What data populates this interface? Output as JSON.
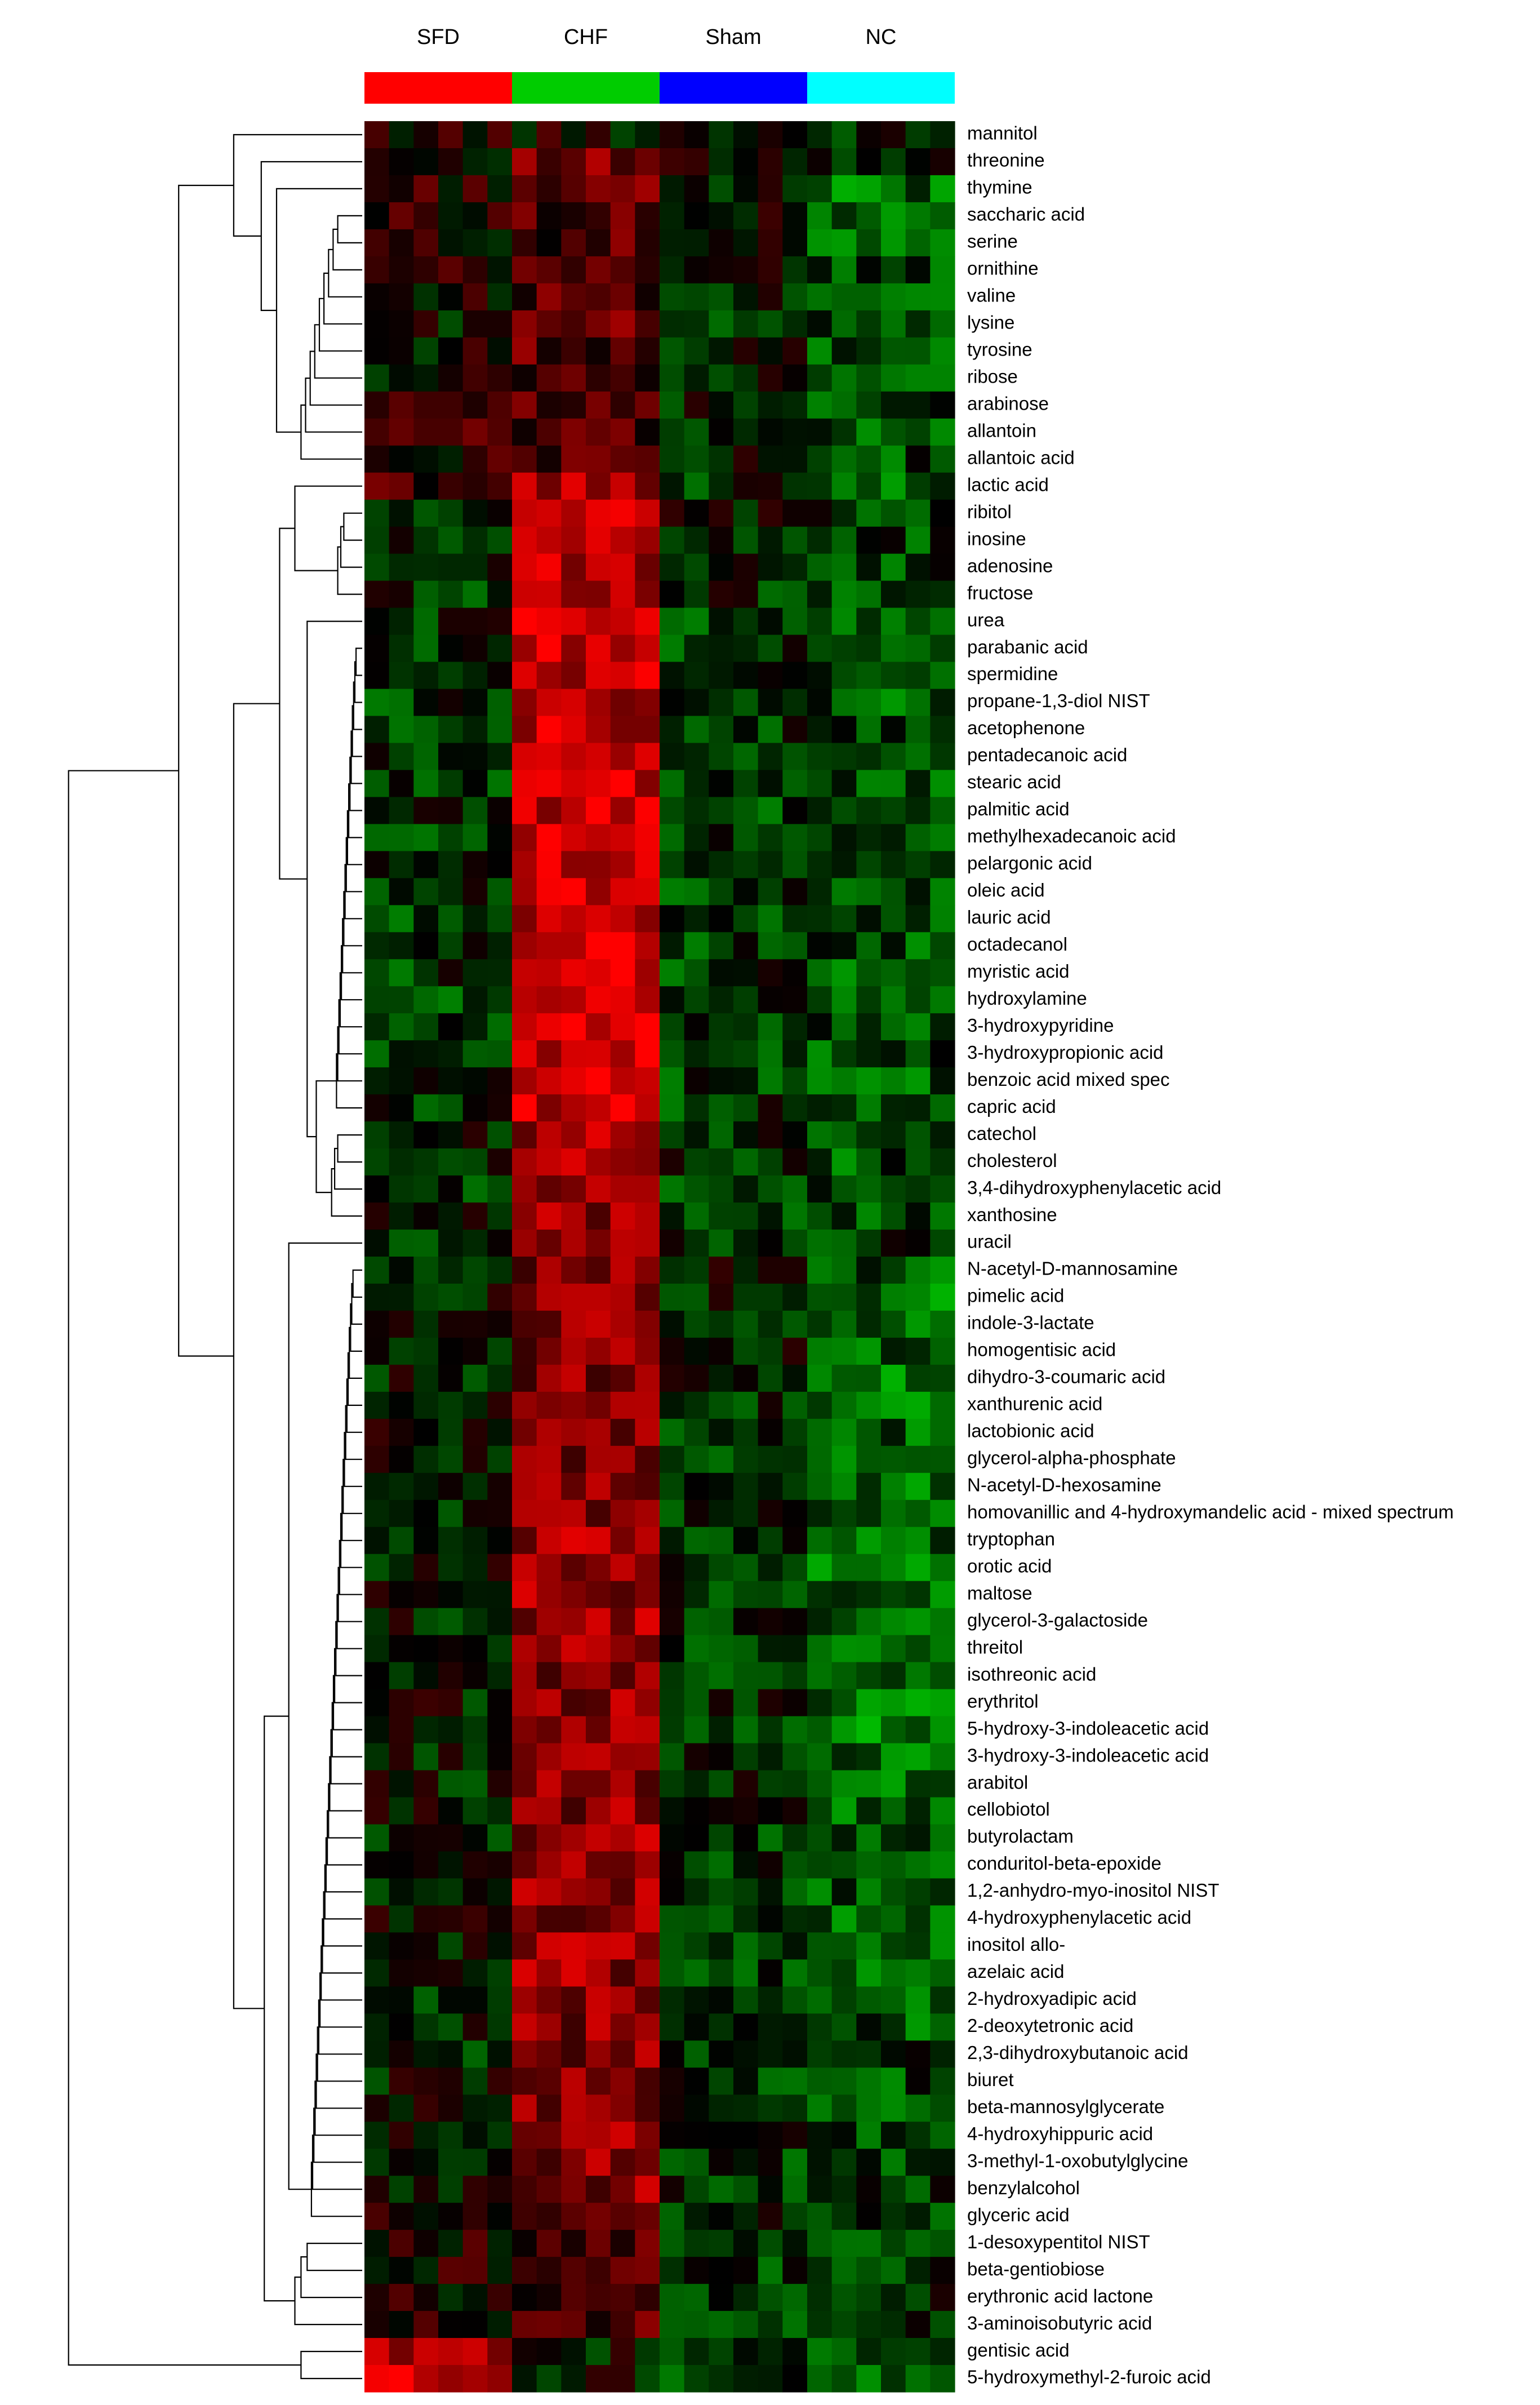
{
  "chart_data": {
    "type": "heatmap",
    "title": "",
    "color_scale": {
      "low": "#00ff00",
      "mid": "#000000",
      "high": "#ff0000",
      "range": [
        -3,
        3
      ]
    },
    "groups": [
      {
        "name": "SFD",
        "color": "#ff0000",
        "n_samples": 6
      },
      {
        "name": "CHF",
        "color": "#00cc00",
        "n_samples": 6
      },
      {
        "name": "Sham",
        "color": "#0000ff",
        "n_samples": 6
      },
      {
        "name": "NC",
        "color": "#00ffff",
        "n_samples": 6
      }
    ],
    "rows": [
      "mannitol",
      "threonine",
      "thymine",
      "saccharic acid",
      "serine",
      "ornithine",
      "valine",
      "lysine",
      "tyrosine",
      "ribose",
      "arabinose",
      "allantoin",
      "allantoic acid",
      "lactic acid",
      "ribitol",
      "inosine",
      "adenosine",
      "fructose",
      "urea",
      "parabanic acid",
      "spermidine",
      "propane-1,3-diol NIST",
      "acetophenone",
      "pentadecanoic acid",
      "stearic acid",
      "palmitic acid",
      "methylhexadecanoic acid",
      "pelargonic acid",
      "oleic acid",
      "lauric acid",
      "octadecanol",
      "myristic acid",
      "hydroxylamine",
      "3-hydroxypyridine",
      "3-hydroxypropionic acid",
      "benzoic acid mixed spec",
      "capric acid",
      "catechol",
      "cholesterol",
      "3,4-dihydroxyphenylacetic acid",
      "xanthosine",
      "uracil",
      "N-acetyl-D-mannosamine",
      "pimelic acid",
      "indole-3-lactate",
      "homogentisic acid",
      "dihydro-3-coumaric acid",
      "xanthurenic acid",
      "lactobionic acid",
      "glycerol-alpha-phosphate",
      "N-acetyl-D-hexosamine",
      "homovanillic and 4-hydroxymandelic acid - mixed spectrum",
      "tryptophan",
      "orotic acid",
      "maltose",
      "glycerol-3-galactoside",
      "threitol",
      "isothreonic acid",
      "erythritol",
      "5-hydroxy-3-indoleacetic acid",
      "3-hydroxy-3-indoleacetic acid",
      "arabitol",
      "cellobiotol",
      "butyrolactam",
      "conduritol-beta-epoxide",
      "1,2-anhydro-myo-inositol NIST",
      "4-hydroxyphenylacetic acid",
      "inositol allo-",
      "azelaic acid",
      "2-hydroxyadipic acid",
      "2-deoxytetronic acid",
      "2,3-dihydroxybutanoic acid",
      "biuret",
      "beta-mannosylglycerate",
      "4-hydroxyhippuric acid",
      "3-methyl-1-oxobutylglycine",
      "benzylalcohol",
      "glyceric acid",
      "1-desoxypentitol NIST",
      "beta-gentiobiose",
      "erythronic acid lactone",
      "3-aminoisobutyric acid",
      "gentisic acid",
      "5-hydroxymethyl-2-furoic acid"
    ],
    "group_mean_z": [
      [
        0.4,
        0.1,
        0.1,
        -0.4
      ],
      [
        0.3,
        1.2,
        -0.1,
        -0.5
      ],
      [
        0.5,
        1.0,
        -0.3,
        -1.2
      ],
      [
        0.4,
        1.0,
        -0.2,
        -1.0
      ],
      [
        0.2,
        0.8,
        -0.3,
        -1.0
      ],
      [
        0.2,
        0.9,
        0.0,
        -0.8
      ],
      [
        0.1,
        1.0,
        -0.2,
        -1.0
      ],
      [
        0.0,
        1.0,
        -0.4,
        -0.8
      ],
      [
        0.0,
        1.0,
        -0.3,
        -0.9
      ],
      [
        0.1,
        0.8,
        -0.3,
        -0.7
      ],
      [
        0.3,
        0.8,
        -0.3,
        -0.9
      ],
      [
        0.6,
        0.9,
        -0.2,
        -0.9
      ],
      [
        0.5,
        0.9,
        -0.2,
        -0.8
      ],
      [
        0.8,
        1.8,
        -0.5,
        -1.0
      ],
      [
        -0.5,
        2.2,
        -0.3,
        -0.7
      ],
      [
        -0.6,
        2.2,
        -0.3,
        -0.7
      ],
      [
        -0.4,
        2.0,
        -0.3,
        -0.7
      ],
      [
        -0.5,
        2.0,
        -0.4,
        -0.8
      ],
      [
        -0.4,
        2.2,
        -0.6,
        -1.0
      ],
      [
        -0.6,
        2.3,
        -0.6,
        -0.9
      ],
      [
        -0.6,
        2.3,
        -0.5,
        -0.9
      ],
      [
        -0.6,
        2.2,
        -0.6,
        -0.9
      ],
      [
        -0.6,
        2.2,
        -0.6,
        -0.9
      ],
      [
        -0.6,
        2.3,
        -0.6,
        -0.9
      ],
      [
        -0.6,
        2.3,
        -0.6,
        -0.9
      ],
      [
        -0.6,
        2.3,
        -0.6,
        -0.9
      ],
      [
        -0.6,
        2.3,
        -0.6,
        -0.9
      ],
      [
        -0.6,
        2.3,
        -0.6,
        -0.9
      ],
      [
        -0.6,
        2.3,
        -0.6,
        -0.9
      ],
      [
        -0.6,
        2.3,
        -0.6,
        -0.9
      ],
      [
        -0.6,
        2.3,
        -0.6,
        -0.9
      ],
      [
        -0.6,
        2.3,
        -0.6,
        -0.9
      ],
      [
        -0.6,
        2.3,
        -0.6,
        -0.9
      ],
      [
        -0.6,
        2.3,
        -0.6,
        -0.9
      ],
      [
        -0.6,
        2.3,
        -0.6,
        -0.9
      ],
      [
        -0.6,
        2.3,
        -0.6,
        -0.9
      ],
      [
        -0.6,
        2.3,
        -0.6,
        -0.9
      ],
      [
        -0.3,
        1.8,
        -0.4,
        -0.9
      ],
      [
        -0.4,
        2.0,
        -0.5,
        -0.9
      ],
      [
        -0.5,
        2.0,
        -0.5,
        -0.9
      ],
      [
        -0.2,
        1.6,
        -0.5,
        -0.9
      ],
      [
        -0.4,
        1.5,
        -0.6,
        -0.5
      ],
      [
        -0.1,
        1.4,
        -0.3,
        -0.9
      ],
      [
        -0.3,
        1.5,
        -0.2,
        -1.2
      ],
      [
        -0.4,
        1.5,
        -0.3,
        -1.2
      ],
      [
        -0.3,
        1.5,
        -0.3,
        -1.1
      ],
      [
        -0.3,
        1.5,
        -0.3,
        -1.2
      ],
      [
        -0.3,
        1.6,
        -0.4,
        -1.1
      ],
      [
        -0.2,
        1.5,
        -0.4,
        -1.1
      ],
      [
        -0.2,
        1.5,
        -0.5,
        -1.0
      ],
      [
        -0.3,
        1.5,
        -0.6,
        -1.1
      ],
      [
        -0.2,
        1.6,
        -0.5,
        -1.2
      ],
      [
        -0.2,
        1.8,
        -0.5,
        -1.2
      ],
      [
        -0.2,
        1.8,
        -0.5,
        -1.2
      ],
      [
        -0.2,
        1.8,
        -0.5,
        -1.2
      ],
      [
        -0.2,
        1.8,
        -0.5,
        -1.2
      ],
      [
        -0.2,
        1.6,
        -0.5,
        -1.3
      ],
      [
        -0.2,
        1.6,
        -0.5,
        -1.3
      ],
      [
        -0.2,
        1.6,
        -0.5,
        -1.3
      ],
      [
        -0.2,
        1.6,
        -0.5,
        -1.3
      ],
      [
        -0.2,
        1.6,
        -0.5,
        -1.3
      ],
      [
        -0.2,
        1.6,
        -0.5,
        -1.3
      ],
      [
        -0.2,
        1.6,
        -0.5,
        -1.2
      ],
      [
        -0.4,
        1.7,
        -0.5,
        -1.0
      ],
      [
        -0.3,
        1.7,
        -0.5,
        -1.0
      ],
      [
        -0.2,
        1.6,
        -0.5,
        -1.0
      ],
      [
        -0.2,
        1.6,
        -0.5,
        -1.0
      ],
      [
        -0.3,
        1.7,
        -0.6,
        -1.0
      ],
      [
        -0.3,
        1.7,
        -0.6,
        -1.0
      ],
      [
        -0.3,
        1.6,
        -0.5,
        -0.9
      ],
      [
        -0.3,
        1.6,
        -0.5,
        -0.9
      ],
      [
        -0.3,
        1.5,
        -0.5,
        -0.8
      ],
      [
        -0.1,
        1.6,
        -0.6,
        -0.8
      ],
      [
        -0.1,
        1.6,
        -0.6,
        -0.8
      ],
      [
        -0.2,
        1.6,
        -0.6,
        -0.8
      ],
      [
        -0.2,
        1.5,
        -0.6,
        -0.7
      ],
      [
        -0.2,
        1.6,
        -0.6,
        -0.7
      ],
      [
        0.0,
        1.4,
        -0.4,
        -0.7
      ],
      [
        0.2,
        1.0,
        -0.3,
        -0.6
      ],
      [
        0.4,
        0.7,
        -0.5,
        -0.7
      ],
      [
        0.3,
        0.9,
        -0.6,
        -0.1
      ],
      [
        0.5,
        1.0,
        -0.6,
        -0.3
      ],
      [
        2.2,
        -0.2,
        -0.6,
        -0.8
      ],
      [
        2.4,
        -0.2,
        -0.6,
        -0.8
      ]
    ]
  }
}
